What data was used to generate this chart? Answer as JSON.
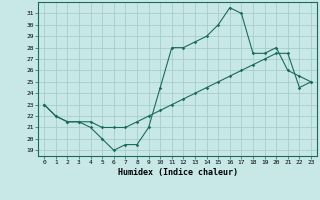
{
  "xlabel": "Humidex (Indice chaleur)",
  "bg_color": "#c8e8e8",
  "line_color": "#1a6b5a",
  "grid_color": "#a0c8c8",
  "xlim": [
    -0.5,
    23.5
  ],
  "ylim": [
    18.5,
    32.0
  ],
  "yticks": [
    19,
    20,
    21,
    22,
    23,
    24,
    25,
    26,
    27,
    28,
    29,
    30,
    31
  ],
  "xticks": [
    0,
    1,
    2,
    3,
    4,
    5,
    6,
    7,
    8,
    9,
    10,
    11,
    12,
    13,
    14,
    15,
    16,
    17,
    18,
    19,
    20,
    21,
    22,
    23
  ],
  "line1_x": [
    0,
    1,
    2,
    3,
    4,
    5,
    6,
    7,
    8,
    9,
    10,
    11,
    12,
    13,
    14,
    15,
    16,
    17,
    18,
    19,
    20,
    21,
    22,
    23
  ],
  "line1_y": [
    23,
    22,
    21.5,
    21.5,
    21,
    20,
    19,
    19.5,
    19.5,
    21,
    24.5,
    28,
    28,
    28.5,
    29,
    30,
    31.5,
    31,
    27.5,
    27.5,
    28,
    26,
    25.5,
    25
  ],
  "line2_x": [
    0,
    1,
    2,
    3,
    4,
    5,
    6,
    7,
    8,
    9,
    10,
    11,
    12,
    13,
    14,
    15,
    16,
    17,
    18,
    19,
    20,
    21,
    22,
    23
  ],
  "line2_y": [
    23,
    22,
    21.5,
    21.5,
    21.5,
    21,
    21,
    21,
    21.5,
    22,
    22.5,
    23,
    23.5,
    24,
    24.5,
    25,
    25.5,
    26,
    26.5,
    27,
    27.5,
    27.5,
    24.5,
    25
  ]
}
